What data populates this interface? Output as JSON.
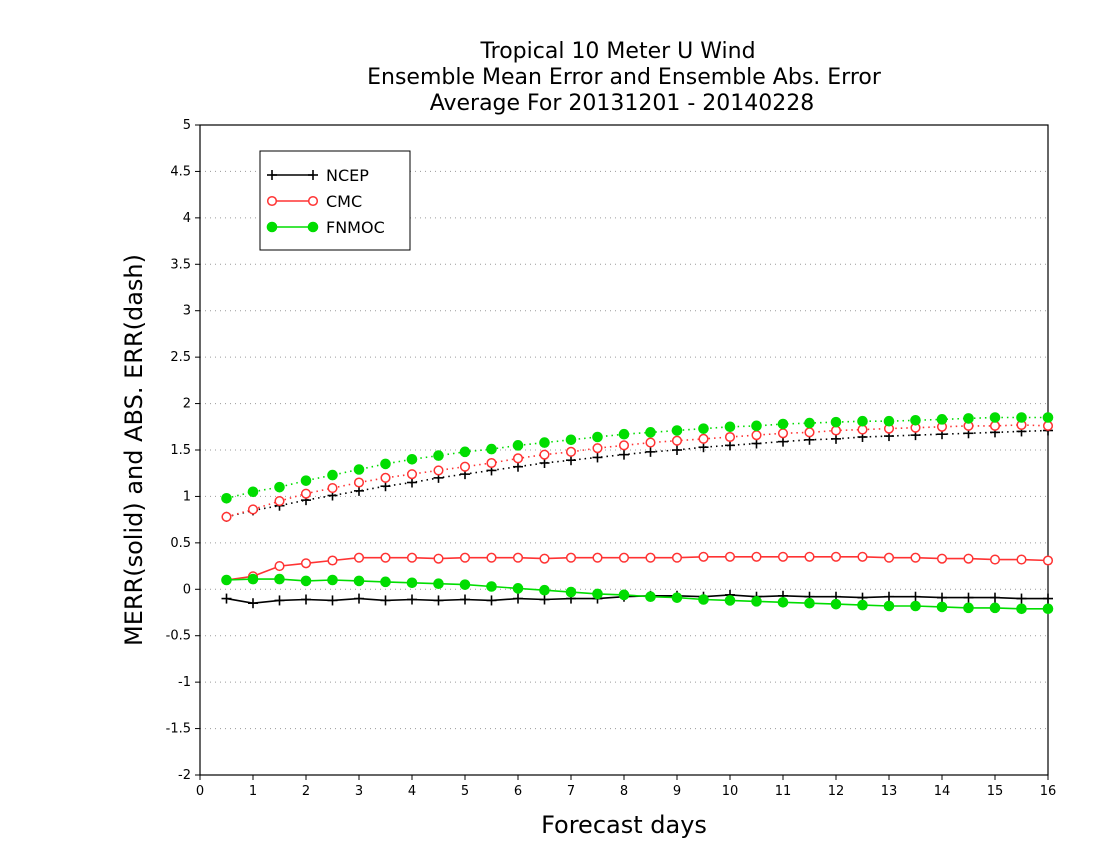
{
  "chart_data": {
    "type": "line",
    "title_lines": [
      "Tropical 10 Meter U Wind",
      "Ensemble Mean Error and Ensemble Abs. Error",
      "Average For 20131201 - 20140228"
    ],
    "xlabel": "Forecast days",
    "ylabel": "MERR(solid) and ABS. ERR(dash)",
    "xlim": [
      0,
      16
    ],
    "ylim": [
      -2,
      5
    ],
    "xticks": [
      "0",
      "1",
      "2",
      "3",
      "4",
      "5",
      "6",
      "7",
      "8",
      "9",
      "10",
      "11",
      "12",
      "13",
      "14",
      "15",
      "16"
    ],
    "yticks": [
      "-2",
      "-1.5",
      "-1",
      "-0.5",
      "0",
      "0.5",
      "1",
      "1.5",
      "2",
      "2.5",
      "3",
      "3.5",
      "4",
      "4.5",
      "5"
    ],
    "grid": "horizontal-dotted",
    "legend_position": "top-left",
    "x": [
      0.5,
      1,
      1.5,
      2,
      2.5,
      3,
      3.5,
      4,
      4.5,
      5,
      5.5,
      6,
      6.5,
      7,
      7.5,
      8,
      8.5,
      9,
      9.5,
      10,
      10.5,
      11,
      11.5,
      12,
      12.5,
      13,
      13.5,
      14,
      14.5,
      15,
      15.5,
      16
    ],
    "series": [
      {
        "name": "NCEP",
        "color": "#000000",
        "marker": "plus",
        "merr": [
          -0.1,
          -0.15,
          -0.12,
          -0.11,
          -0.12,
          -0.1,
          -0.12,
          -0.11,
          -0.12,
          -0.11,
          -0.12,
          -0.1,
          -0.11,
          -0.1,
          -0.1,
          -0.08,
          -0.07,
          -0.07,
          -0.08,
          -0.06,
          -0.08,
          -0.07,
          -0.08,
          -0.08,
          -0.09,
          -0.08,
          -0.08,
          -0.09,
          -0.09,
          -0.09,
          -0.1,
          -0.1
        ],
        "abs_err": [
          0.78,
          0.85,
          0.9,
          0.96,
          1.01,
          1.06,
          1.11,
          1.15,
          1.2,
          1.24,
          1.28,
          1.32,
          1.36,
          1.39,
          1.42,
          1.45,
          1.48,
          1.5,
          1.53,
          1.55,
          1.57,
          1.59,
          1.61,
          1.62,
          1.64,
          1.65,
          1.66,
          1.67,
          1.68,
          1.69,
          1.7,
          1.71
        ]
      },
      {
        "name": "CMC",
        "color": "#ff3333",
        "marker": "open-circle",
        "merr": [
          0.1,
          0.14,
          0.25,
          0.28,
          0.31,
          0.34,
          0.34,
          0.34,
          0.33,
          0.34,
          0.34,
          0.34,
          0.33,
          0.34,
          0.34,
          0.34,
          0.34,
          0.34,
          0.35,
          0.35,
          0.35,
          0.35,
          0.35,
          0.35,
          0.35,
          0.34,
          0.34,
          0.33,
          0.33,
          0.32,
          0.32,
          0.31
        ],
        "abs_err": [
          0.78,
          0.86,
          0.95,
          1.03,
          1.09,
          1.15,
          1.2,
          1.24,
          1.28,
          1.32,
          1.36,
          1.41,
          1.45,
          1.48,
          1.52,
          1.55,
          1.58,
          1.6,
          1.62,
          1.64,
          1.66,
          1.68,
          1.69,
          1.71,
          1.72,
          1.73,
          1.74,
          1.75,
          1.76,
          1.76,
          1.77,
          1.76
        ]
      },
      {
        "name": "FNMOC",
        "color": "#00dd00",
        "marker": "filled-circle",
        "merr": [
          0.1,
          0.11,
          0.11,
          0.09,
          0.1,
          0.09,
          0.08,
          0.07,
          0.06,
          0.05,
          0.03,
          0.01,
          -0.01,
          -0.03,
          -0.05,
          -0.06,
          -0.08,
          -0.09,
          -0.11,
          -0.12,
          -0.13,
          -0.14,
          -0.15,
          -0.16,
          -0.17,
          -0.18,
          -0.18,
          -0.19,
          -0.2,
          -0.2,
          -0.21,
          -0.21
        ],
        "abs_err": [
          0.98,
          1.05,
          1.1,
          1.17,
          1.23,
          1.29,
          1.35,
          1.4,
          1.44,
          1.48,
          1.51,
          1.55,
          1.58,
          1.61,
          1.64,
          1.67,
          1.69,
          1.71,
          1.73,
          1.75,
          1.76,
          1.78,
          1.79,
          1.8,
          1.81,
          1.81,
          1.82,
          1.83,
          1.84,
          1.85,
          1.85,
          1.85
        ]
      }
    ]
  }
}
